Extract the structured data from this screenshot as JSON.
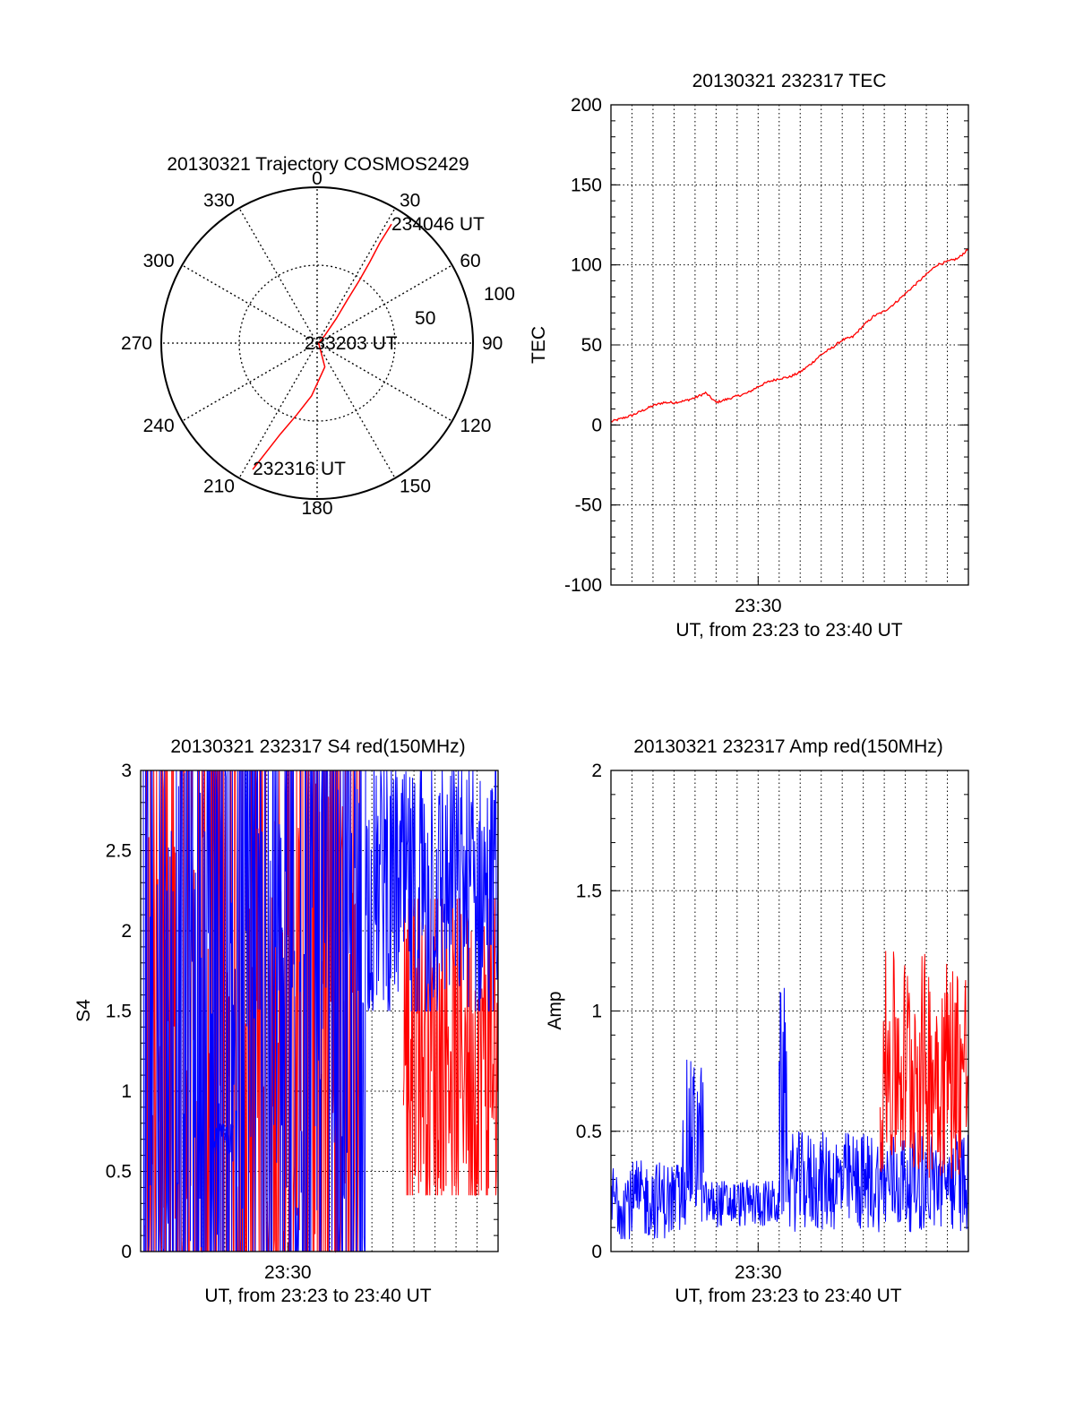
{
  "figure": {
    "background": "#ffffff"
  },
  "chart_data": [
    {
      "type": "polar",
      "title": "20130321 Trajectory COSMOS2429",
      "azimuth_labels": [
        "0",
        "30",
        "60",
        "90",
        "120",
        "150",
        "180",
        "210",
        "240",
        "270",
        "300",
        "330"
      ],
      "radial_labels": [
        "50",
        "100"
      ],
      "rlim": [
        0,
        100
      ],
      "grid": true,
      "series": [
        {
          "color": "#ff0000",
          "points": [
            [
              207,
              91
            ],
            [
              205,
              77
            ],
            [
              202,
              63
            ],
            [
              196,
              48
            ],
            [
              186,
              34
            ],
            [
              162,
              16
            ],
            [
              90,
              1
            ],
            [
              45,
              7
            ],
            [
              38,
              20
            ],
            [
              35,
              34
            ],
            [
              34,
              48
            ],
            [
              33,
              62
            ],
            [
              32,
              76
            ],
            [
              32,
              90
            ]
          ]
        }
      ],
      "annotations": [
        {
          "text": "232316 UT",
          "az": 207,
          "r": 91
        },
        {
          "text": "233203 UT",
          "az": 90,
          "r": 1
        },
        {
          "text": "234046 UT",
          "az": 32,
          "r": 90
        }
      ]
    },
    {
      "type": "line",
      "title": "20130321 232317 TEC",
      "ylabel": "TEC",
      "xlabel": "UT, from 23:23 to 23:40 UT",
      "xtick_labels": [
        "23:30"
      ],
      "xtick_minutes": [
        7
      ],
      "xlim": [
        0,
        17
      ],
      "ylim": [
        -100,
        200
      ],
      "yticks": [
        -100,
        -50,
        0,
        50,
        100,
        150,
        200
      ],
      "grid": true,
      "series": [
        {
          "color": "#ff0000",
          "x": [
            0,
            0.5,
            1,
            1.5,
            2,
            2.5,
            3,
            3.5,
            4,
            4.5,
            5,
            5.5,
            6,
            6.5,
            7,
            7.5,
            8,
            8.5,
            9,
            9.5,
            10,
            10.5,
            11,
            11.5,
            12,
            12.5,
            13,
            13.5,
            14,
            14.5,
            15,
            15.5,
            16,
            16.5,
            17
          ],
          "y": [
            2,
            4,
            6,
            9,
            12,
            14,
            14,
            15,
            17,
            20,
            14,
            16,
            18,
            20,
            24,
            27,
            29,
            30,
            33,
            38,
            44,
            48,
            53,
            55,
            62,
            68,
            71,
            76,
            82,
            88,
            94,
            100,
            102,
            104,
            110
          ]
        }
      ]
    },
    {
      "type": "line",
      "title": "20130321 232317 S4 red(150MHz)",
      "ylabel": "S4",
      "xlabel": "UT, from 23:23 to 23:40 UT",
      "xtick_labels": [
        "23:30"
      ],
      "xtick_minutes": [
        7
      ],
      "xlim": [
        0,
        17
      ],
      "ylim": [
        0,
        3
      ],
      "yticks": [
        0,
        0.5,
        1,
        1.5,
        2,
        2.5,
        3
      ],
      "grid": true,
      "series": [
        {
          "color": "#ff0000",
          "segments": [
            {
              "x_range": [
                0.2,
                10.4
              ],
              "y_range": [
                0,
                3
              ],
              "density": 0.45
            },
            {
              "x_range": [
                12.5,
                17
              ],
              "y_range": [
                0.35,
                2.2
              ],
              "density": 0.8
            }
          ]
        },
        {
          "color": "#0000ff",
          "segments": [
            {
              "x_range": [
                0.1,
                10.7
              ],
              "y_range": [
                0,
                3
              ],
              "density": 0.35
            },
            {
              "x_range": [
                10.7,
                17
              ],
              "y_range": [
                1.5,
                3
              ],
              "density": 0.9
            },
            {
              "x_range": [
                3.4,
                4.4
              ],
              "y_range": [
                0.6,
                0.8
              ],
              "density": 1
            }
          ]
        }
      ]
    },
    {
      "type": "line",
      "title": "20130321 232317 Amp red(150MHz)",
      "ylabel": "Amp",
      "xlabel": "UT, from 23:23 to 23:40 UT",
      "xtick_labels": [
        "23:30"
      ],
      "xtick_minutes": [
        7
      ],
      "xlim": [
        0,
        17
      ],
      "ylim": [
        0,
        2
      ],
      "yticks": [
        0,
        0.5,
        1,
        1.5,
        2
      ],
      "grid": true,
      "series": [
        {
          "color": "#0000ff",
          "segments": [
            {
              "x_range": [
                0,
                3.4
              ],
              "y_range": [
                0.05,
                0.38
              ],
              "density": 1
            },
            {
              "x_range": [
                3.4,
                4.4
              ],
              "y_range": [
                0.1,
                0.8
              ],
              "density": 1
            },
            {
              "x_range": [
                4.4,
                8
              ],
              "y_range": [
                0.1,
                0.3
              ],
              "density": 1
            },
            {
              "x_range": [
                8,
                8.4
              ],
              "y_range": [
                0.1,
                1.1
              ],
              "density": 1
            },
            {
              "x_range": [
                8.4,
                17
              ],
              "y_range": [
                0.08,
                0.5
              ],
              "density": 1
            }
          ]
        },
        {
          "color": "#ff0000",
          "segments": [
            {
              "x_range": [
                12.8,
                17
              ],
              "y_range": [
                0.3,
                1.25
              ],
              "density": 1
            }
          ]
        }
      ]
    }
  ]
}
